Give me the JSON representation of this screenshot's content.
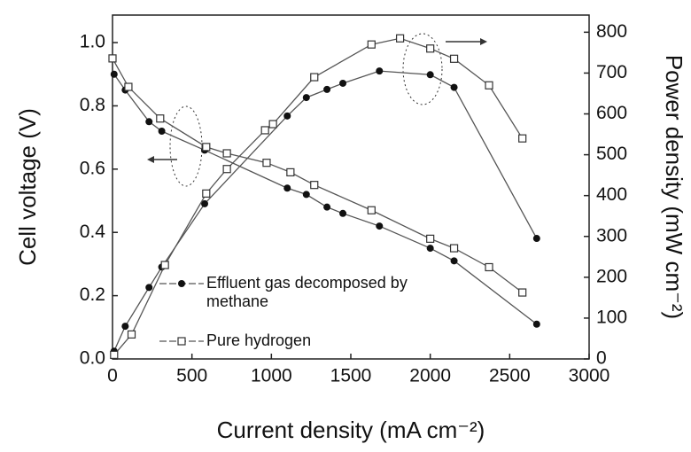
{
  "chart_data": {
    "type": "line",
    "x_label": "Current density (mA cm⁻²)",
    "y_label": "Cell voltage (V)",
    "y2_label": "Power density (mW cm⁻²)",
    "xlim": [
      0,
      3000
    ],
    "xticks": [
      0,
      500,
      1000,
      1500,
      2000,
      2500,
      3000
    ],
    "ylim": [
      0,
      1.087
    ],
    "yticks": [
      {
        "value": 0,
        "label": "0.0"
      },
      0.2,
      0.4,
      0.6,
      0.8,
      {
        "value": 1,
        "label": "1.0"
      }
    ],
    "y2lim": [
      0,
      842
    ],
    "y2ticks": [
      0,
      100,
      200,
      300,
      400,
      500,
      600,
      700,
      800
    ],
    "series": [
      {
        "name": "Effluent gas decomposed by methane",
        "color": "#555555",
        "marker": "filled-circle",
        "x": [
          10,
          80,
          230,
          310,
          580,
          1100,
          1220,
          1350,
          1450,
          1680,
          2000,
          2150,
          2670
        ],
        "values": [
          0.9,
          0.85,
          0.75,
          0.72,
          0.66,
          0.54,
          0.52,
          0.48,
          0.46,
          0.42,
          0.35,
          0.31,
          0.11
        ]
      },
      {
        "name": "Effluent gas decomposed by methane",
        "color": "#555555",
        "marker": "filled-circle",
        "axis": "y2",
        "x": [
          10,
          80,
          230,
          310,
          580,
          1100,
          1220,
          1350,
          1450,
          1680,
          2000,
          2150,
          2670
        ],
        "values": [
          19,
          80,
          175,
          225,
          380,
          595,
          640,
          660,
          675,
          705,
          696,
          665,
          295
        ]
      },
      {
        "name": "Pure hydrogen",
        "color": "#555555",
        "marker": "open-square",
        "x": [
          0,
          100,
          300,
          590,
          720,
          970,
          1120,
          1270,
          1630,
          2000,
          2150,
          2370,
          2580
        ],
        "values": [
          0.95,
          0.86,
          0.76,
          0.67,
          0.65,
          0.62,
          0.59,
          0.55,
          0.47,
          0.38,
          0.35,
          0.29,
          0.21
        ]
      },
      {
        "name": "Pure hydrogen",
        "color": "#555555",
        "marker": "open-square",
        "axis": "y2",
        "x": [
          10,
          120,
          330,
          590,
          720,
          960,
          1010,
          1270,
          1630,
          1810,
          2000,
          2150,
          2370,
          2580
        ],
        "values": [
          10,
          60,
          230,
          405,
          465,
          560,
          575,
          690,
          770,
          785,
          760,
          735,
          670,
          540
        ]
      }
    ]
  }
}
